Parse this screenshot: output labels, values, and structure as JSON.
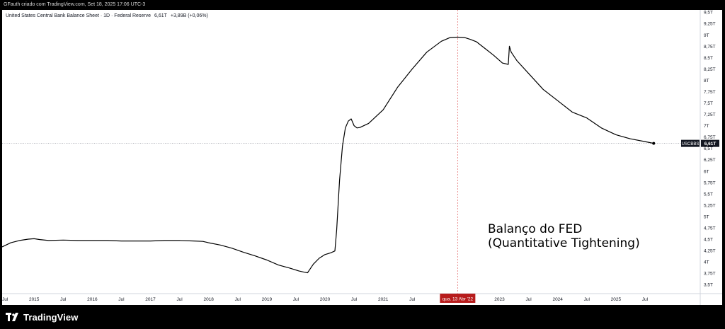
{
  "header": {
    "attribution": "GFauth criado com TradingView.com, Set 18, 2025 17:06 UTC-3"
  },
  "legend": {
    "symbol_description": "United States Central Bank Balance Sheet · 1D · Federal Reserve",
    "last_value": "6,61T",
    "change": "+3,89B (+0,06%)"
  },
  "annotation": {
    "line1": "Balanço do FED",
    "line2": "(Quantitative Tightening)"
  },
  "crosshair": {
    "date_label": "qua. 13 Abr '22",
    "date_value": 2022.28
  },
  "price_tag": {
    "symbol": "USCBBS",
    "value": "6,61T",
    "level": 6.61
  },
  "footer": {
    "brand": "TradingView"
  },
  "colors": {
    "series": "#000000",
    "crosshair": "#e57373",
    "date_badge": "#b71c1c",
    "price_tag_bg": "#131722",
    "background": "#ffffff",
    "frame": "#000000"
  },
  "chart_data": {
    "type": "line",
    "title": "United States Central Bank Balance Sheet",
    "ylabel": "",
    "xlabel": "",
    "units": "T",
    "xlim": [
      2014.45,
      2026.45
    ],
    "ylim": [
      3.3,
      9.55
    ],
    "y_ticks": [
      3.5,
      3.75,
      4,
      4.25,
      4.5,
      4.75,
      5,
      5.25,
      5.5,
      5.75,
      6,
      6.25,
      6.5,
      6.75,
      7,
      7.25,
      7.5,
      7.75,
      8,
      8.25,
      8.5,
      8.75,
      9,
      9.25,
      9.5
    ],
    "y_tick_labels": [
      "3,5T",
      "3,75T",
      "4T",
      "4,25T",
      "4,5T",
      "4,75T",
      "5T",
      "5,25T",
      "5,5T",
      "5,75T",
      "6T",
      "6,25T",
      "6,5T",
      "6,75T",
      "7T",
      "7,25T",
      "7,5T",
      "7,75T",
      "8T",
      "8,25T",
      "8,5T",
      "8,75T",
      "9T",
      "9,25T",
      "9,5T"
    ],
    "x_ticks": [
      {
        "x": 2014.5,
        "label": "Jul"
      },
      {
        "x": 2015.0,
        "label": "2015"
      },
      {
        "x": 2015.5,
        "label": "Jul"
      },
      {
        "x": 2016.0,
        "label": "2016"
      },
      {
        "x": 2016.5,
        "label": "Jul"
      },
      {
        "x": 2017.0,
        "label": "2017"
      },
      {
        "x": 2017.5,
        "label": "Jul"
      },
      {
        "x": 2018.0,
        "label": "2018"
      },
      {
        "x": 2018.5,
        "label": "Jul"
      },
      {
        "x": 2019.0,
        "label": "2019"
      },
      {
        "x": 2019.5,
        "label": "Jul"
      },
      {
        "x": 2020.0,
        "label": "2020"
      },
      {
        "x": 2020.5,
        "label": "Jul"
      },
      {
        "x": 2021.0,
        "label": "2021"
      },
      {
        "x": 2021.5,
        "label": "Jul"
      },
      {
        "x": 2023.0,
        "label": "2023"
      },
      {
        "x": 2023.5,
        "label": "Jul"
      },
      {
        "x": 2024.0,
        "label": "2024"
      },
      {
        "x": 2024.5,
        "label": "Jul"
      },
      {
        "x": 2025.0,
        "label": "2025"
      },
      {
        "x": 2025.5,
        "label": "Jul"
      }
    ],
    "grid": false,
    "series": [
      {
        "name": "USCBBS",
        "x": [
          2014.45,
          2014.6,
          2014.75,
          2014.9,
          2015.0,
          2015.1,
          2015.25,
          2015.5,
          2015.75,
          2016.0,
          2016.25,
          2016.5,
          2016.75,
          2017.0,
          2017.25,
          2017.5,
          2017.75,
          2017.9,
          2018.0,
          2018.2,
          2018.4,
          2018.6,
          2018.8,
          2019.0,
          2019.2,
          2019.4,
          2019.55,
          2019.65,
          2019.7,
          2019.8,
          2019.9,
          2020.0,
          2020.1,
          2020.17,
          2020.2,
          2020.25,
          2020.3,
          2020.35,
          2020.4,
          2020.45,
          2020.5,
          2020.55,
          2020.6,
          2020.75,
          2021.0,
          2021.25,
          2021.5,
          2021.75,
          2022.0,
          2022.15,
          2022.28,
          2022.4,
          2022.5,
          2022.6,
          2022.75,
          2022.9,
          2023.05,
          2023.15,
          2023.17,
          2023.2,
          2023.3,
          2023.5,
          2023.75,
          2024.0,
          2024.25,
          2024.5,
          2024.75,
          2025.0,
          2025.25,
          2025.5,
          2025.65
        ],
        "y": [
          4.33,
          4.42,
          4.47,
          4.5,
          4.51,
          4.49,
          4.47,
          4.48,
          4.47,
          4.47,
          4.47,
          4.46,
          4.46,
          4.46,
          4.47,
          4.47,
          4.46,
          4.45,
          4.42,
          4.37,
          4.3,
          4.21,
          4.13,
          4.04,
          3.93,
          3.86,
          3.8,
          3.77,
          3.76,
          3.95,
          4.08,
          4.16,
          4.2,
          4.24,
          4.7,
          5.8,
          6.55,
          6.95,
          7.1,
          7.15,
          7.0,
          6.95,
          6.96,
          7.05,
          7.35,
          7.85,
          8.25,
          8.62,
          8.86,
          8.94,
          8.95,
          8.94,
          8.9,
          8.85,
          8.7,
          8.55,
          8.38,
          8.35,
          8.75,
          8.62,
          8.43,
          8.15,
          7.8,
          7.55,
          7.3,
          7.17,
          6.95,
          6.8,
          6.71,
          6.65,
          6.61
        ]
      }
    ]
  }
}
